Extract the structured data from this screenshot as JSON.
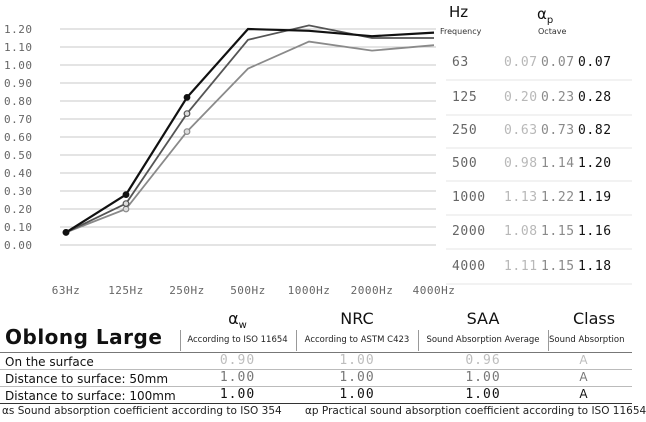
{
  "chart_data": {
    "type": "line",
    "x": [
      "63Hz",
      "125Hz",
      "250Hz",
      "500Hz",
      "1000Hz",
      "2000Hz",
      "4000Hz"
    ],
    "ylim": [
      0,
      1.2
    ],
    "yticks": [
      "1.20",
      "1.10",
      "1.00",
      "0.90",
      "0.80",
      "0.70",
      "0.60",
      "0.50",
      "0.40",
      "0.30",
      "0.20",
      "0.10",
      "0.00"
    ],
    "grid": true,
    "series": [
      {
        "values": [
          0.07,
          0.2,
          0.63,
          0.98,
          1.13,
          1.08,
          1.11
        ],
        "color": "#8a8a8a"
      },
      {
        "values": [
          0.07,
          0.23,
          0.73,
          1.14,
          1.22,
          1.15,
          1.15
        ],
        "color": "#555555"
      },
      {
        "values": [
          0.07,
          0.28,
          0.82,
          1.2,
          1.19,
          1.16,
          1.18
        ],
        "color": "#111111"
      }
    ]
  },
  "table_header": {
    "hz": "Hz",
    "frequency": "Frequency",
    "alpha_p": "α",
    "alpha_p_sub": "p",
    "octave": "Octave"
  },
  "freq_rows": [
    {
      "freq": "63",
      "v": [
        "0.07",
        "0.07",
        "0.07"
      ]
    },
    {
      "freq": "125",
      "v": [
        "0.20",
        "0.23",
        "0.28"
      ]
    },
    {
      "freq": "250",
      "v": [
        "0.63",
        "0.73",
        "0.82"
      ]
    },
    {
      "freq": "500",
      "v": [
        "0.98",
        "1.14",
        "1.20"
      ]
    },
    {
      "freq": "1000",
      "v": [
        "1.13",
        "1.22",
        "1.19"
      ]
    },
    {
      "freq": "2000",
      "v": [
        "1.08",
        "1.15",
        "1.16"
      ]
    },
    {
      "freq": "4000",
      "v": [
        "1.11",
        "1.15",
        "1.18"
      ]
    }
  ],
  "product": {
    "title": "Oblong Large",
    "columns": [
      {
        "head": "α",
        "head_sub": "w",
        "sub": "According to ISO 11654"
      },
      {
        "head": "NRC",
        "sub": "According to ASTM C423"
      },
      {
        "head": "SAA",
        "sub": "Sound Absorption Average"
      },
      {
        "head": "Class",
        "sub": "Sound Absorption"
      }
    ],
    "rows": [
      {
        "label": "On the surface",
        "values": [
          "0.90",
          "1.00",
          "0.96",
          "A"
        ]
      },
      {
        "label": "Distance to surface: 50mm",
        "values": [
          "1.00",
          "1.00",
          "1.00",
          "A"
        ]
      },
      {
        "label": "Distance to surface: 100mm",
        "values": [
          "1.00",
          "1.00",
          "1.00",
          "A"
        ]
      }
    ]
  },
  "footnotes": {
    "left": "αs Sound absorption coefficient according to ISO 354",
    "right": "αp Practical sound absorption coefficient according to ISO 11654"
  }
}
